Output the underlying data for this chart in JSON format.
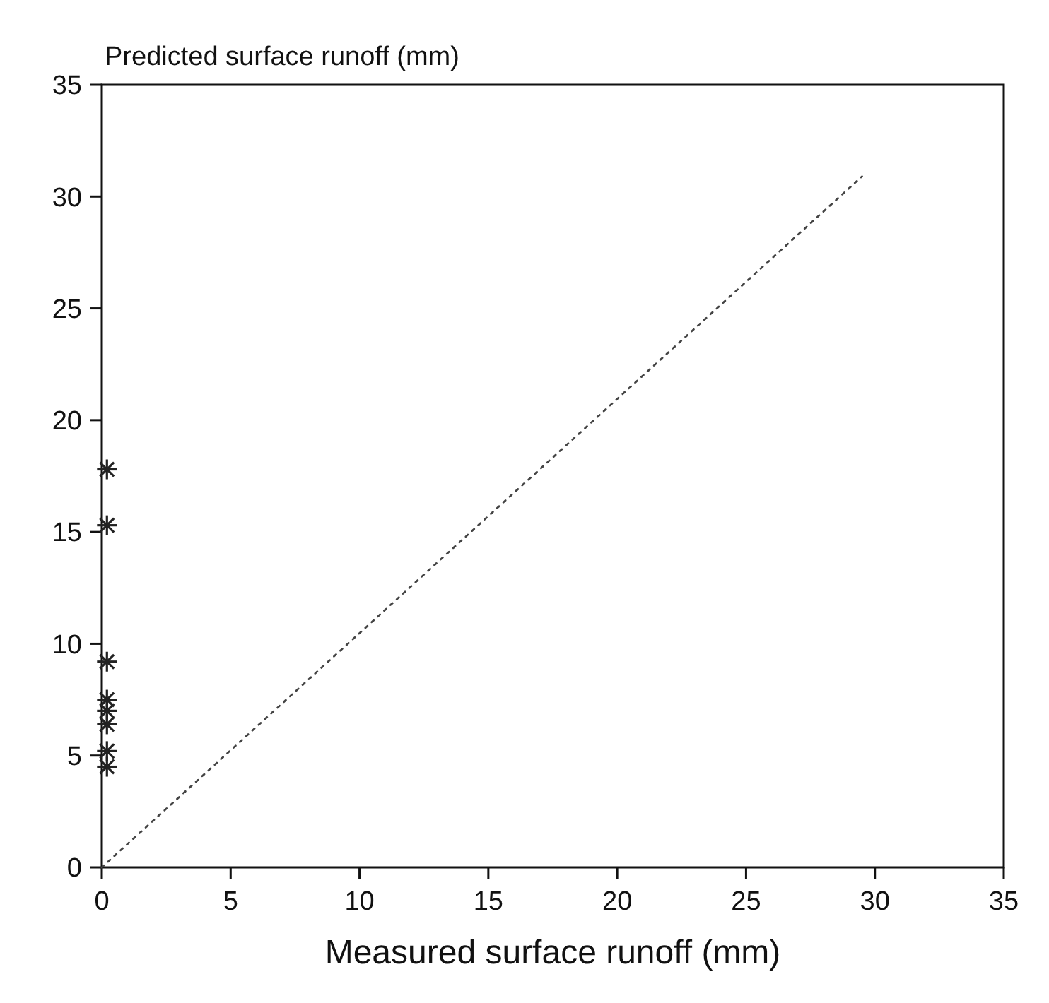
{
  "chart_data": {
    "type": "scatter",
    "xlabel": "Measured surface runoff (mm)",
    "ylabel": "Predicted surface runoff (mm)",
    "xlim": [
      0,
      35
    ],
    "ylim": [
      0,
      35
    ],
    "xticks": [
      0,
      5,
      10,
      15,
      20,
      25,
      30,
      35
    ],
    "yticks": [
      0,
      5,
      10,
      15,
      20,
      25,
      30,
      35
    ],
    "grid": false,
    "series": [
      {
        "color": "#222222",
        "marker": "cross",
        "x": [
          0.2,
          0.2,
          0.2,
          0.2,
          0.2,
          0.2,
          0.2,
          0.2
        ],
        "values": [
          17.8,
          15.3,
          9.2,
          7.5,
          7.0,
          6.4,
          5.2,
          4.5
        ]
      },
      {
        "type": "line",
        "color": "#444444",
        "line_style": "dotted",
        "marker": "none",
        "x": [
          0,
          29.5
        ],
        "values": [
          0,
          30.9
        ]
      }
    ]
  }
}
